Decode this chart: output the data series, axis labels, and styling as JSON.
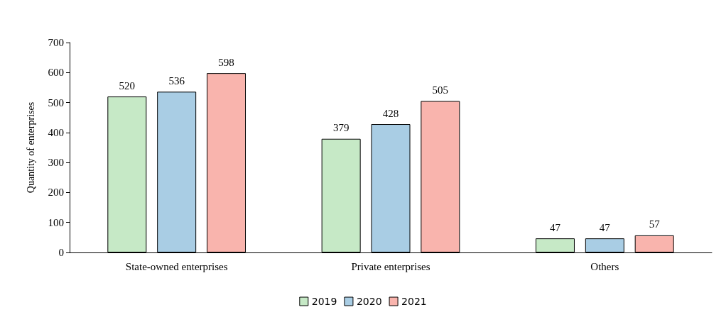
{
  "chart_data": {
    "type": "bar",
    "ylabel": "Quantity of enterprises",
    "categories": [
      "State-owned enterprises",
      "Private enterprises",
      "Others"
    ],
    "series": [
      {
        "name": "2019",
        "color": "#c6e9c6",
        "values": [
          520,
          379,
          47
        ]
      },
      {
        "name": "2020",
        "color": "#a9cde4",
        "values": [
          536,
          428,
          47
        ]
      },
      {
        "name": "2021",
        "color": "#f9b4ad",
        "values": [
          598,
          505,
          57
        ]
      }
    ],
    "ylim": [
      0,
      700
    ],
    "yticks": [
      0,
      100,
      200,
      300,
      400,
      500,
      600,
      700
    ],
    "grid": false,
    "legend": "bottom",
    "data_labels": true
  }
}
